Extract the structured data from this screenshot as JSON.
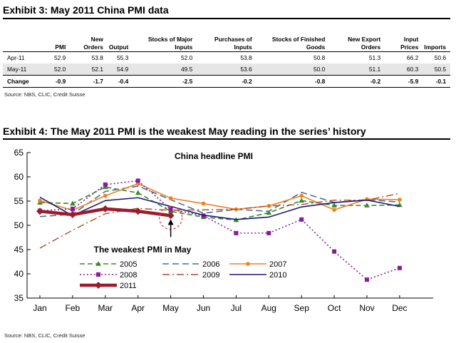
{
  "exhibit3": {
    "title": "Exhibit 3: May 2011 China PMI data",
    "headers": [
      "",
      "PMI",
      "New Orders",
      "Output",
      "Stocks of Major Inputs",
      "Purchases of Inputs",
      "Stocks of Finished Goods",
      "New Export Orders",
      "Input Prices",
      "Imports"
    ],
    "rows": [
      {
        "label": "Apr-11",
        "values": [
          "52.9",
          "53.8",
          "55.3",
          "52.0",
          "53.8",
          "50.8",
          "51.3",
          "66.2",
          "50.6"
        ]
      },
      {
        "label": "May-11",
        "values": [
          "52.0",
          "52.1",
          "54.9",
          "49.5",
          "53.6",
          "50.0",
          "51.1",
          "60.3",
          "50.5"
        ]
      },
      {
        "label": "Change",
        "values": [
          "-0.9",
          "-1.7",
          "-0.4",
          "-2.5",
          "-0.2",
          "-0.8",
          "-0.2",
          "-5.9",
          "-0.1"
        ]
      }
    ],
    "source": "Source: NBS, CLIC, Credit Suisse"
  },
  "exhibit4": {
    "title": "Exhibit 4: The May 2011 PMI is the weakest May reading in the series’ history",
    "source": "Source: NBS, CLIC, Credit Suisse"
  },
  "chart_data": {
    "type": "line",
    "title": "China headline PMI",
    "annotation": "The weakest PMI in May",
    "categories": [
      "Jan",
      "Feb",
      "Mar",
      "Apr",
      "May",
      "Jun",
      "Jul",
      "Aug",
      "Sep",
      "Oct",
      "Nov",
      "Dec"
    ],
    "ylim": [
      35,
      65
    ],
    "yticks": [
      "35",
      "40",
      "45",
      "50",
      "55",
      "60",
      "65"
    ],
    "series": [
      {
        "name": "2005",
        "color": "#3a8a2a",
        "dash": "7,4",
        "width": 1.6,
        "marker": "triangle",
        "values": [
          54.7,
          54.5,
          57.9,
          56.7,
          52.9,
          51.7,
          51.1,
          52.6,
          55.1,
          54.1,
          54.1,
          54.2
        ]
      },
      {
        "name": "2006",
        "color": "#4a6e8c",
        "dash": "9,5",
        "width": 1.6,
        "marker": null,
        "values": [
          51.8,
          52.3,
          57.0,
          58.1,
          55.3,
          52.5,
          53.3,
          52.9,
          56.8,
          54.7,
          55.3,
          54.8
        ]
      },
      {
        "name": "2007",
        "color": "#f08020",
        "dash": "",
        "width": 1.6,
        "marker": "circle",
        "values": [
          55.1,
          53.1,
          56.1,
          58.6,
          55.6,
          54.5,
          53.3,
          54.0,
          56.1,
          53.2,
          55.4,
          55.3
        ]
      },
      {
        "name": "2008",
        "color": "#8a1a9a",
        "dash": "2,3",
        "width": 1.6,
        "marker": "square",
        "values": [
          53.0,
          53.4,
          58.4,
          59.2,
          53.3,
          52.0,
          48.4,
          48.4,
          51.2,
          44.6,
          38.8,
          41.2
        ]
      },
      {
        "name": "2009",
        "color": "#b04a28",
        "dash": "10,4,2,4",
        "width": 1.4,
        "marker": null,
        "values": [
          45.3,
          49.0,
          52.4,
          53.5,
          53.1,
          53.2,
          53.3,
          54.0,
          54.3,
          55.2,
          55.2,
          56.6
        ]
      },
      {
        "name": "2010",
        "color": "#1a1a7a",
        "dash": "",
        "width": 1.6,
        "marker": null,
        "values": [
          55.8,
          52.0,
          55.1,
          55.7,
          53.9,
          52.1,
          51.2,
          51.7,
          53.8,
          54.7,
          55.2,
          53.9
        ]
      },
      {
        "name": "2011",
        "color": "#9c1c2c",
        "dash": "",
        "width": 4.5,
        "marker": "diamond",
        "values": [
          52.9,
          52.2,
          53.4,
          52.9,
          52.0,
          null,
          null,
          null,
          null,
          null,
          null,
          null
        ]
      }
    ]
  }
}
